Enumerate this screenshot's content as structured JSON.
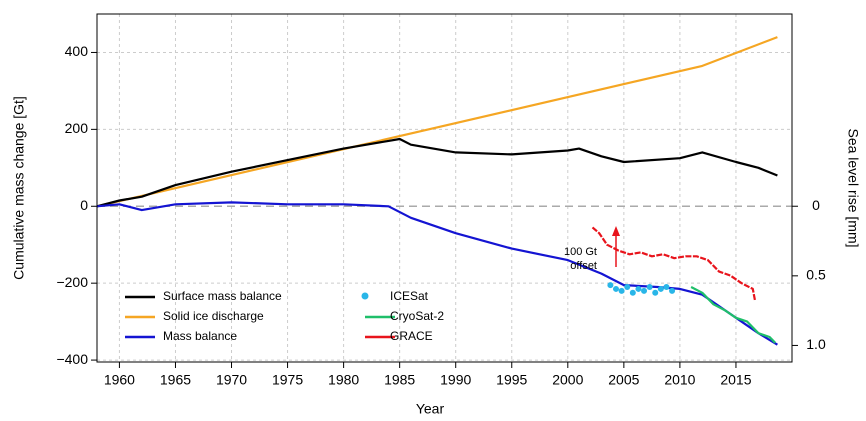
{
  "chart_data": {
    "type": "line",
    "xlabel": "Year",
    "ylabel": "Cumulative mass change [Gt]",
    "y2label": "Sea level rise [mm]",
    "annotation": {
      "lines": [
        "100 Gt",
        "offset"
      ],
      "color": "#e8141c"
    },
    "xlim": [
      1958,
      2020
    ],
    "ylim": [
      -405,
      500
    ],
    "y2lim": [
      1.119,
      -1.381
    ],
    "xticks": [
      1960,
      1965,
      1970,
      1975,
      1980,
      1985,
      1990,
      1995,
      2000,
      2005,
      2010,
      2015
    ],
    "yticks": [
      {
        "value": -400,
        "label": "−400"
      },
      {
        "value": -200,
        "label": "−200"
      },
      0,
      200,
      400
    ],
    "y2ticks": [
      0,
      0.5,
      {
        "value": 1,
        "label": "1.0"
      }
    ],
    "grid": true,
    "legend": "lower left",
    "series": [
      {
        "name": "Surface mass balance",
        "color": "#000000",
        "style": "line",
        "x": [
          1958,
          1960,
          1962,
          1965,
          1970,
          1975,
          1980,
          1984,
          1985,
          1986,
          1990,
          1995,
          2000,
          2001,
          2003,
          2005,
          2010,
          2012,
          2015,
          2017,
          2018.7
        ],
        "values": [
          0,
          15,
          25,
          55,
          90,
          120,
          150,
          170,
          175,
          160,
          140,
          135,
          145,
          150,
          130,
          115,
          125,
          140,
          115,
          100,
          80
        ]
      },
      {
        "name": "Solid ice discharge",
        "color": "#f5a623",
        "style": "line",
        "x": [
          1958,
          2012,
          2018.7
        ],
        "values": [
          0,
          365,
          440
        ]
      },
      {
        "name": "Mass balance",
        "color": "#1414d2",
        "style": "line",
        "x": [
          1958,
          1960,
          1962,
          1965,
          1970,
          1975,
          1980,
          1984,
          1986,
          1990,
          1995,
          2000,
          2003,
          2005,
          2008,
          2010,
          2012,
          2015,
          2017,
          2018.7
        ],
        "values": [
          0,
          5,
          -10,
          5,
          10,
          5,
          5,
          0,
          -30,
          -70,
          -110,
          -140,
          -175,
          -205,
          -210,
          -215,
          -230,
          -290,
          -330,
          -360
        ]
      },
      {
        "name": "ICESat",
        "color": "#29b6e8",
        "style": "scatter",
        "x": [
          2003.8,
          2004.3,
          2004.8,
          2005.3,
          2005.8,
          2006.3,
          2006.8,
          2007.3,
          2007.8,
          2008.3,
          2008.8,
          2009.3
        ],
        "values": [
          -205,
          -215,
          -220,
          -210,
          -225,
          -215,
          -220,
          -210,
          -225,
          -215,
          -210,
          -220
        ]
      },
      {
        "name": "CryoSat-2",
        "color": "#1fbf6a",
        "style": "line",
        "x": [
          2011,
          2012,
          2013,
          2014,
          2015,
          2016,
          2017,
          2018,
          2018.5
        ],
        "values": [
          -210,
          -225,
          -255,
          -270,
          -290,
          -300,
          -330,
          -340,
          -355
        ]
      },
      {
        "name": "GRACE",
        "color": "#e8141c",
        "style": "line",
        "x": [
          2002.2,
          2002.8,
          2003.5,
          2004.5,
          2005.5,
          2006.5,
          2007.5,
          2008.5,
          2009.5,
          2010.5,
          2011.5,
          2012.5,
          2013.5,
          2014.5,
          2015.5,
          2016.5,
          2016.7
        ],
        "values": [
          -55,
          -70,
          -100,
          -115,
          -125,
          -120,
          -130,
          -125,
          -135,
          -130,
          -130,
          -140,
          -170,
          -180,
          -200,
          -215,
          -245
        ]
      }
    ]
  }
}
